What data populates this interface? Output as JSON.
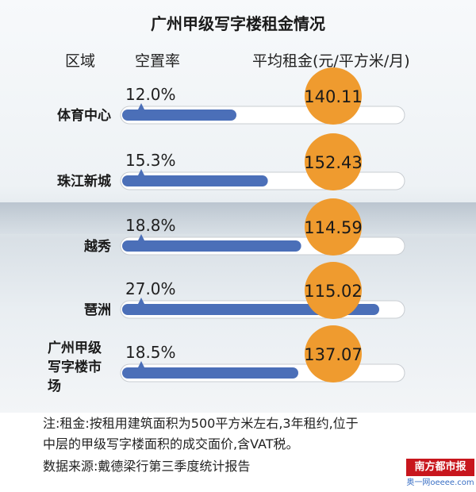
{
  "chart_data": {
    "type": "bar",
    "title": "广州甲级写字楼租金情况",
    "header_region": "区域",
    "header_vacancy": "空置率",
    "header_rent": "平均租金(元/平方米/月)",
    "categories": [
      "体育中心",
      "珠江新城",
      "越秀",
      "琶洲",
      "广州甲级写字楼市场"
    ],
    "series": [
      {
        "name": "空置率",
        "values": [
          12.0,
          15.3,
          18.8,
          27.0,
          18.5
        ],
        "labels": [
          "12.0%",
          "15.3%",
          "18.8%",
          "27.0%",
          "18.5%"
        ]
      },
      {
        "name": "平均租金(元/平方米/月)",
        "values": [
          140.11,
          152.43,
          114.59,
          115.02,
          137.07
        ],
        "labels": [
          "140.11",
          "152.43",
          "114.59",
          "115.02",
          "137.07"
        ]
      }
    ],
    "colors": {
      "bar": "#4b6fb8",
      "circle": "#ef9b2f",
      "track": "#ffffff"
    }
  },
  "notes": {
    "line1": "注:租金:按租用建筑面积为500平方米左右,3年租约,位于",
    "line2": "中层的甲级写字楼面积的成交面价,含VAT税。",
    "line3": "数据来源:戴德梁行第三季度统计报告"
  },
  "branding": {
    "logo": "南方都市报",
    "watermark": "奥一网oeeee.com"
  }
}
